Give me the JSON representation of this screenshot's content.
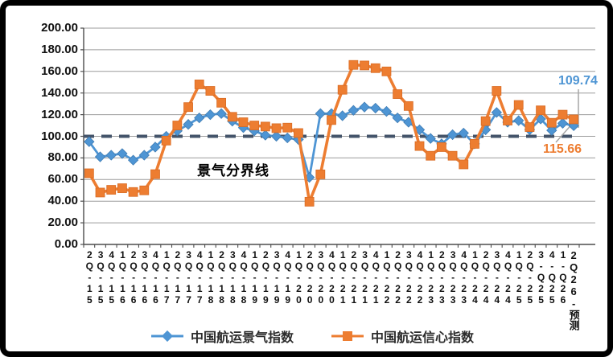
{
  "chart_data": {
    "type": "line",
    "title": "",
    "xlabel": "",
    "ylabel": "",
    "ylim": [
      0,
      200
    ],
    "ytick_step": 20,
    "ytick_labels": [
      "200.00",
      "180.00",
      "160.00",
      "140.00",
      "120.00",
      "100.00",
      "80.00",
      "60.00",
      "40.00",
      "20.00",
      "0.00"
    ],
    "grid": true,
    "legend_position": "bottom",
    "categories": [
      "2Q-15",
      "3Q-15",
      "4Q-15",
      "1Q-16",
      "2Q-16",
      "3Q-16",
      "4Q-16",
      "1Q-17",
      "2Q-17",
      "3Q-17",
      "4Q-17",
      "1Q-18",
      "2Q-18",
      "3Q-18",
      "4Q-18",
      "1Q-19",
      "2Q-19",
      "3Q-19",
      "4Q-19",
      "1Q-20",
      "2Q-20",
      "3Q-20",
      "4Q-20",
      "1Q-21",
      "2Q-21",
      "3Q-21",
      "4Q-21",
      "1Q-22",
      "2Q-22",
      "3Q-22",
      "4Q-22",
      "1Q-23",
      "2Q-23",
      "3Q-23",
      "4Q-23",
      "1Q-24",
      "2Q-24",
      "3Q-24",
      "4Q-24",
      "1Q-25",
      "2Q-25",
      "3-Q25",
      "4-Q25",
      "1-Q26",
      "2Q26-预测"
    ],
    "series": [
      {
        "name": "中国航运景气指数",
        "marker": "diamond",
        "color": "#4E95D4",
        "values": [
          95,
          81,
          82.5,
          84,
          78,
          82.5,
          90,
          100,
          105,
          111,
          117,
          120,
          121,
          114,
          108,
          105,
          101,
          100,
          98.5,
          97,
          62,
          121,
          121,
          119,
          124,
          127,
          126,
          123,
          117,
          113,
          106,
          98,
          93,
          101.5,
          103,
          93,
          106,
          122,
          113,
          114.5,
          106,
          116,
          105.5,
          112,
          109.74
        ]
      },
      {
        "name": "中国航运信心指数",
        "marker": "square",
        "color": "#ED7D31",
        "values": [
          65.8,
          48,
          50.5,
          52,
          48.5,
          50,
          65,
          96,
          110,
          127,
          148,
          142,
          131,
          118,
          113,
          110,
          109,
          107.5,
          108,
          103,
          39.5,
          64.8,
          115,
          143,
          166,
          165.5,
          163,
          160,
          139,
          128,
          91,
          82,
          90,
          82,
          74,
          93,
          114,
          142,
          114.5,
          129,
          108.5,
          124,
          112.5,
          120,
          115.66
        ]
      }
    ],
    "reference_line": {
      "value": 100,
      "label": "景气分界线",
      "color": "#44546A",
      "style": "dashed"
    },
    "annotations": [
      {
        "text": "109.74",
        "series": "中国航运景气指数",
        "color": "#4E95D4",
        "position": "top-right"
      },
      {
        "text": "115.66",
        "series": "中国航运信心指数",
        "color": "#ED7D31",
        "position": "right-below-reference"
      }
    ],
    "colors": {
      "gridline": "#9b9b9b",
      "axis": "#4d4d4d",
      "leader_line": "#a6a6a6",
      "tick_label": "#111111"
    }
  }
}
